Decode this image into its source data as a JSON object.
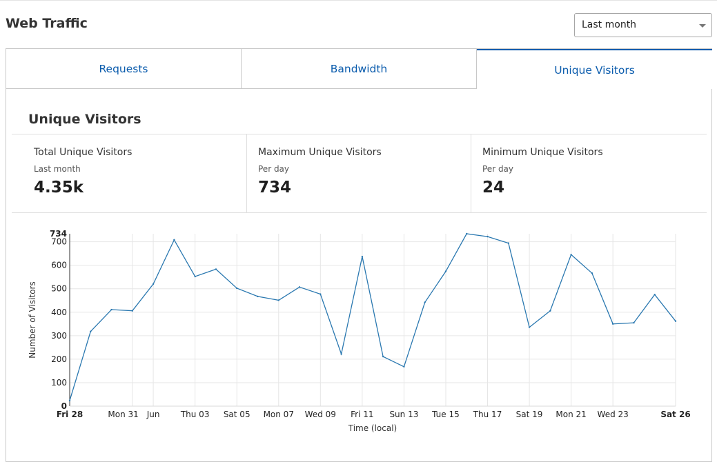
{
  "header": {
    "title": "Web Traffic",
    "range_select": {
      "value": "Last month"
    }
  },
  "tabs": [
    {
      "label": "Requests",
      "active": false
    },
    {
      "label": "Bandwidth",
      "active": false
    },
    {
      "label": "Unique Visitors",
      "active": true
    }
  ],
  "section": {
    "title": "Unique Visitors"
  },
  "stats": [
    {
      "label": "Total Unique Visitors",
      "sublabel": "Last month",
      "value": "4.35k"
    },
    {
      "label": "Maximum Unique Visitors",
      "sublabel": "Per day",
      "value": "734"
    },
    {
      "label": "Minimum Unique Visitors",
      "sublabel": "Per day",
      "value": "24"
    }
  ],
  "colors": {
    "accent": "#0b5cad",
    "line": "#2a78b0",
    "grid": "#e6e6e6"
  },
  "chart_data": {
    "type": "line",
    "ylabel": "Number of Visitors",
    "xlabel": "Time (local)",
    "ylim": [
      0,
      734
    ],
    "yticks": [
      0,
      100,
      200,
      300,
      400,
      500,
      600,
      700
    ],
    "y_max_label": "734",
    "grid": true,
    "x": [
      "May 28",
      "May 29",
      "May 30",
      "May 31",
      "Jun 01",
      "Jun 02",
      "Jun 03",
      "Jun 04",
      "Jun 05",
      "Jun 06",
      "Jun 07",
      "Jun 08",
      "Jun 09",
      "Jun 10",
      "Jun 11",
      "Jun 12",
      "Jun 13",
      "Jun 14",
      "Jun 15",
      "Jun 16",
      "Jun 17",
      "Jun 18",
      "Jun 19",
      "Jun 20",
      "Jun 21",
      "Jun 22",
      "Jun 23",
      "Jun 24",
      "Jun 25",
      "Jun 26"
    ],
    "series": [
      {
        "values": [
          24,
          318,
          411,
          406,
          520,
          708,
          552,
          583,
          502,
          467,
          451,
          507,
          477,
          222,
          637,
          211,
          168,
          442,
          574,
          734,
          722,
          694,
          336,
          406,
          645,
          566,
          350,
          355,
          475,
          362
        ]
      }
    ],
    "xticks": [
      {
        "label": "Fri 28",
        "index": 0,
        "bold": true
      },
      {
        "label": "Mon 31",
        "index": 3,
        "bold": false
      },
      {
        "label": "Jun",
        "index": 4,
        "bold": false
      },
      {
        "label": "Thu 03",
        "index": 6,
        "bold": false
      },
      {
        "label": "Sat 05",
        "index": 8,
        "bold": false
      },
      {
        "label": "Mon 07",
        "index": 10,
        "bold": false
      },
      {
        "label": "Wed 09",
        "index": 12,
        "bold": false
      },
      {
        "label": "Fri 11",
        "index": 14,
        "bold": false
      },
      {
        "label": "Sun 13",
        "index": 16,
        "bold": false
      },
      {
        "label": "Tue 15",
        "index": 18,
        "bold": false
      },
      {
        "label": "Thu 17",
        "index": 20,
        "bold": false
      },
      {
        "label": "Sat 19",
        "index": 22,
        "bold": false
      },
      {
        "label": "Mon 21",
        "index": 24,
        "bold": false
      },
      {
        "label": "Wed 23",
        "index": 26,
        "bold": false
      },
      {
        "label": "Sat 26",
        "index": 29,
        "bold": true
      }
    ]
  }
}
